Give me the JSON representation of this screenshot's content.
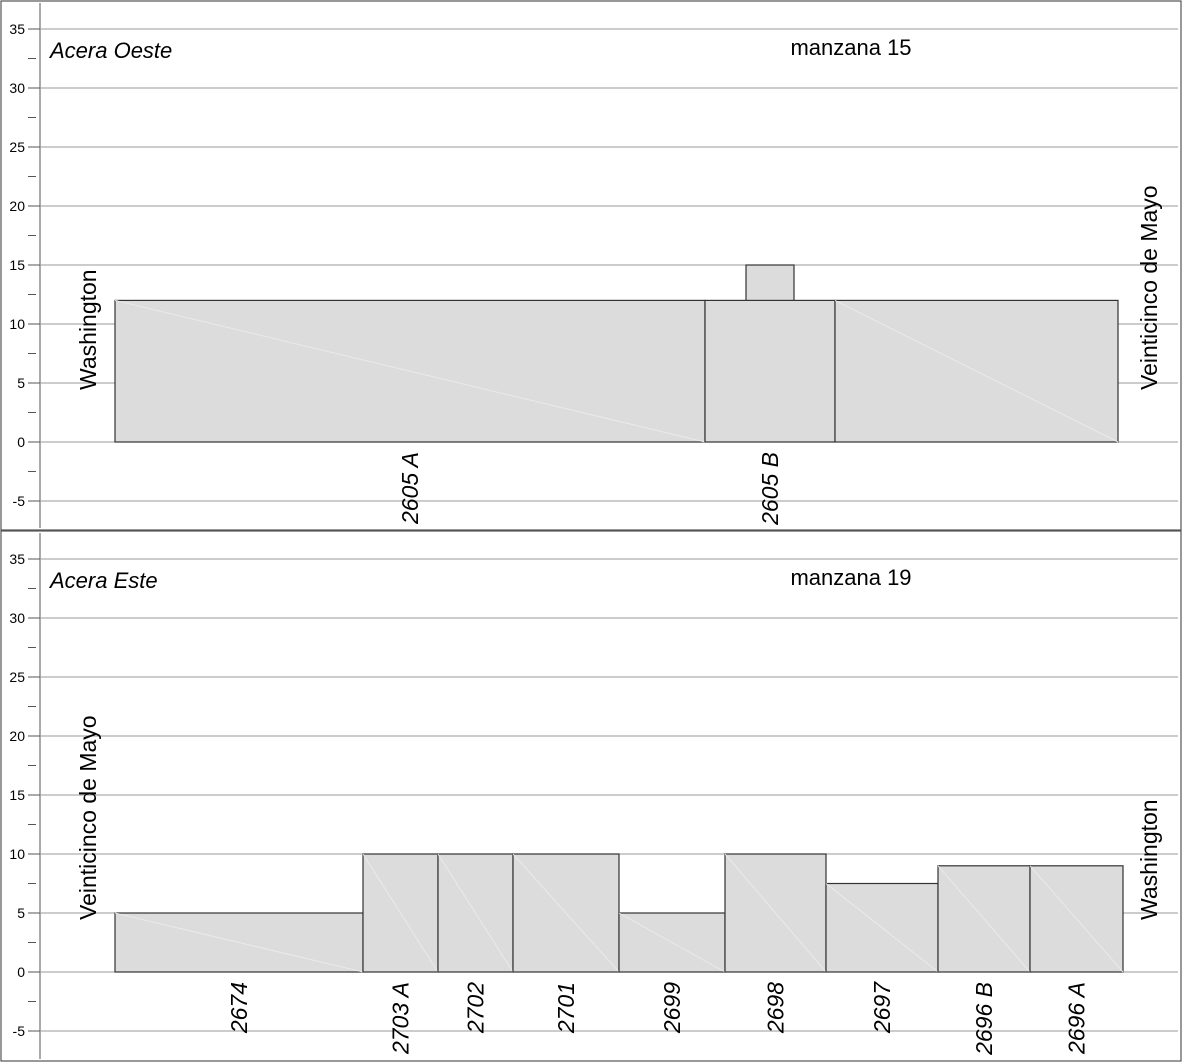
{
  "chart_data": [
    {
      "type": "bar",
      "side_label": "Acera Oeste",
      "title": "manzana 15",
      "street_left": "Washington",
      "street_right": "Veinticinco de Mayo",
      "ylim": [
        -5,
        35
      ],
      "y_ticks": [
        "35",
        "30",
        "25",
        "20",
        "15",
        "10",
        "5",
        "0",
        "-5"
      ],
      "grid": true,
      "lots": [
        {
          "label": "2605 A",
          "x0": 0,
          "x1": 590,
          "height": 12,
          "hatched": false
        },
        {
          "label": "2605 B",
          "x0": 590,
          "x1": 720,
          "height": 12,
          "hatched": true
        },
        {
          "label": "",
          "x0": 720,
          "x1": 1003,
          "height": 12,
          "hatched": false
        },
        {
          "label": "",
          "x0": 631,
          "x1": 679,
          "y0": 12,
          "height": 15,
          "hatched": true
        }
      ]
    },
    {
      "type": "bar",
      "side_label": "Acera Este",
      "title": "manzana 19",
      "street_left": "Veinticinco de Mayo",
      "street_right": "Washington",
      "ylim": [
        -5,
        35
      ],
      "y_ticks": [
        "35",
        "30",
        "25",
        "20",
        "15",
        "10",
        "5",
        "0",
        "-5"
      ],
      "grid": true,
      "lots": [
        {
          "label": "2674",
          "x0": 0,
          "x1": 248,
          "height": 5,
          "hatched": false
        },
        {
          "label": "2703 A",
          "x0": 248,
          "x1": 323,
          "height": 10,
          "hatched": false
        },
        {
          "label": "2702",
          "x0": 323,
          "x1": 398,
          "height": 10,
          "hatched": false
        },
        {
          "label": "2701",
          "x0": 398,
          "x1": 504,
          "height": 10,
          "hatched": false
        },
        {
          "label": "2699",
          "x0": 504,
          "x1": 610,
          "height": 5,
          "hatched": false
        },
        {
          "label": "2698",
          "x0": 610,
          "x1": 711,
          "height": 10,
          "hatched": false
        },
        {
          "label": "2697",
          "x0": 711,
          "x1": 823,
          "height": 7.5,
          "hatched": false
        },
        {
          "label": "2696 B",
          "x0": 823,
          "x1": 915,
          "height": 9,
          "hatched": false
        },
        {
          "label": "2696 A",
          "x0": 915,
          "x1": 1008,
          "height": 9,
          "hatched": false
        }
      ]
    }
  ]
}
